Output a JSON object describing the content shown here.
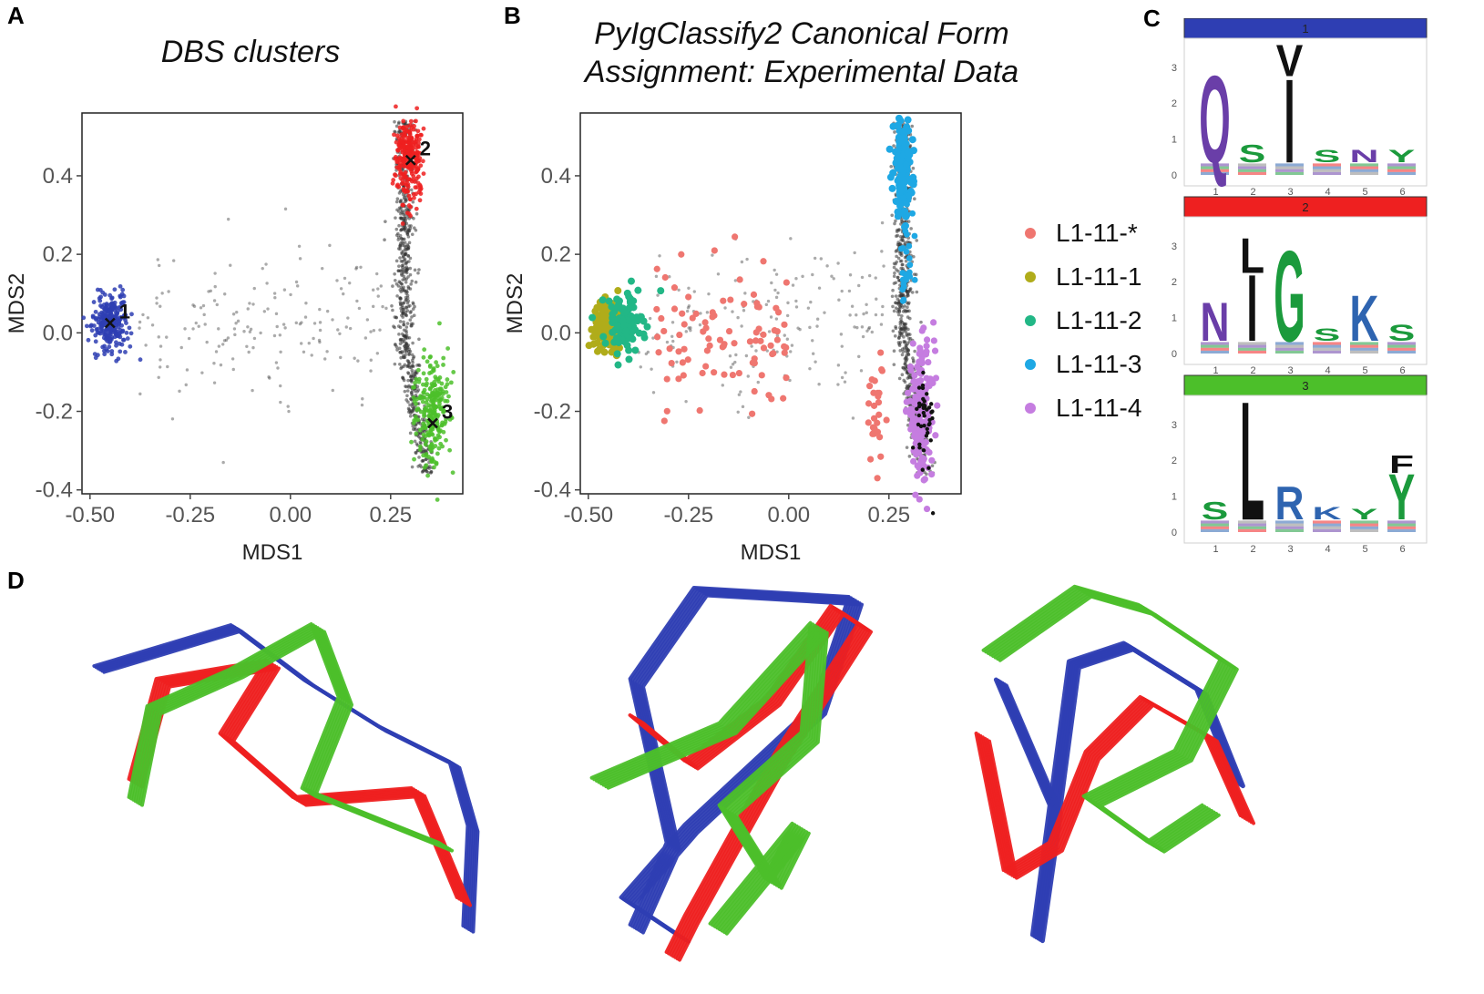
{
  "panel_letters": {
    "a": "A",
    "b": "B",
    "c": "C",
    "d": "D"
  },
  "colors": {
    "cluster_1": "#2e3eb3",
    "cluster_2": "#ee2020",
    "cluster_3": "#4cbf2a",
    "unassigned": "#333333",
    "L1-11-*": "#ef7670",
    "L1-11-1": "#b0ac1a",
    "L1-11-2": "#22b786",
    "L1-11-3": "#1ea8e4",
    "L1-11-4": "#c57de0"
  },
  "chart_data": [
    {
      "id": "panelA",
      "type": "scatter",
      "title": "DBS clusters",
      "xlabel": "MDS1",
      "ylabel": "MDS2",
      "xlim": [
        -0.52,
        0.43
      ],
      "ylim": [
        -0.41,
        0.56
      ],
      "xticks": [
        "-0.50",
        "-0.25",
        "0.00",
        "0.25"
      ],
      "xtick_values": [
        -0.5,
        -0.25,
        0,
        0.25
      ],
      "yticks": [
        "0.4",
        "0.2",
        "0.0",
        "-0.2",
        "-0.4"
      ],
      "ytick_values": [
        0.4,
        0.2,
        0,
        -0.2,
        -0.4
      ],
      "grid": false,
      "series": [
        {
          "name": "1",
          "color": "#2e3eb3",
          "cx": -0.45,
          "cy": 0.025,
          "sx": 0.022,
          "sy": 0.038
        },
        {
          "name": "2",
          "color": "#ee2020",
          "cx": 0.295,
          "cy": 0.45,
          "sx": 0.018,
          "sy": 0.055
        },
        {
          "name": "3",
          "color": "#4cbf2a",
          "cx": 0.355,
          "cy": -0.2,
          "sx": 0.02,
          "sy": 0.07
        }
      ],
      "centroids": [
        {
          "label": "1",
          "x": -0.45,
          "y": 0.025
        },
        {
          "label": "2",
          "x": 0.3,
          "y": 0.44
        },
        {
          "label": "3",
          "x": 0.355,
          "y": -0.23
        }
      ]
    },
    {
      "id": "panelB",
      "type": "scatter",
      "title_line1": "PyIgClassify2 Canonical Form",
      "title_line2": "Assignment: Experimental Data",
      "xlabel": "MDS1",
      "ylabel": "MDS2",
      "xlim": [
        -0.52,
        0.43
      ],
      "ylim": [
        -0.41,
        0.56
      ],
      "xticks": [
        "-0.50",
        "-0.25",
        "0.00",
        "0.25"
      ],
      "xtick_values": [
        -0.5,
        -0.25,
        0,
        0.25
      ],
      "yticks": [
        "0.4",
        "0.2",
        "0.0",
        "-0.2",
        "-0.4"
      ],
      "ytick_values": [
        0.4,
        0.2,
        0,
        -0.2,
        -0.4
      ],
      "grid": false,
      "legend_placement": "right",
      "series": [
        {
          "name": "L1-11-*",
          "color": "#ef7670"
        },
        {
          "name": "L1-11-1",
          "color": "#b0ac1a"
        },
        {
          "name": "L1-11-2",
          "color": "#22b786"
        },
        {
          "name": "L1-11-3",
          "color": "#1ea8e4"
        },
        {
          "name": "L1-11-4",
          "color": "#c57de0"
        }
      ]
    },
    {
      "id": "panelC",
      "type": "sequence-logo",
      "positions": [
        "1",
        "2",
        "3",
        "4",
        "5",
        "6"
      ],
      "yticks": [
        "0",
        "1",
        "2",
        "3"
      ],
      "logos": [
        {
          "header": "1",
          "color": "#2e3eb3",
          "letters": [
            {
              "pos": 1,
              "char": "Q",
              "height": 2.5,
              "color": "#6a3ea8"
            },
            {
              "pos": 2,
              "char": "S",
              "height": 0.5,
              "color": "#1b9a3c"
            },
            {
              "pos": 3,
              "char": "I",
              "height": 2.4,
              "color": "#111111"
            },
            {
              "pos": 3,
              "char": "V",
              "height": 0.9,
              "color": "#111111"
            },
            {
              "pos": 4,
              "char": "S",
              "height": 0.35,
              "color": "#1b9a3c"
            },
            {
              "pos": 5,
              "char": "N",
              "height": 0.35,
              "color": "#6a3ea8"
            },
            {
              "pos": 6,
              "char": "Y",
              "height": 0.35,
              "color": "#1b9a3c"
            }
          ]
        },
        {
          "header": "2",
          "color": "#ee2020",
          "letters": [
            {
              "pos": 1,
              "char": "N",
              "height": 1.1,
              "color": "#6a3ea8"
            },
            {
              "pos": 2,
              "char": "I",
              "height": 1.9,
              "color": "#111111"
            },
            {
              "pos": 2,
              "char": "L",
              "height": 1.0,
              "color": "#111111"
            },
            {
              "pos": 3,
              "char": "G",
              "height": 2.6,
              "color": "#1b9a3c"
            },
            {
              "pos": 4,
              "char": "S",
              "height": 0.35,
              "color": "#1b9a3c"
            },
            {
              "pos": 5,
              "char": "K",
              "height": 1.3,
              "color": "#2e64b0"
            },
            {
              "pos": 6,
              "char": "S",
              "height": 0.45,
              "color": "#1b9a3c"
            }
          ]
        },
        {
          "header": "3",
          "color": "#4cbf2a",
          "letters": [
            {
              "pos": 1,
              "char": "S",
              "height": 0.5,
              "color": "#1b9a3c"
            },
            {
              "pos": 2,
              "char": "L",
              "height": 3.4,
              "color": "#111111"
            },
            {
              "pos": 3,
              "char": "R",
              "height": 0.95,
              "color": "#2e64b0"
            },
            {
              "pos": 4,
              "char": "K",
              "height": 0.35,
              "color": "#2e64b0"
            },
            {
              "pos": 5,
              "char": "Y",
              "height": 0.3,
              "color": "#1b9a3c"
            },
            {
              "pos": 6,
              "char": "Y",
              "height": 1.3,
              "color": "#1b9a3c"
            },
            {
              "pos": 6,
              "char": "F",
              "height": 0.5,
              "color": "#111111"
            }
          ]
        }
      ]
    }
  ]
}
